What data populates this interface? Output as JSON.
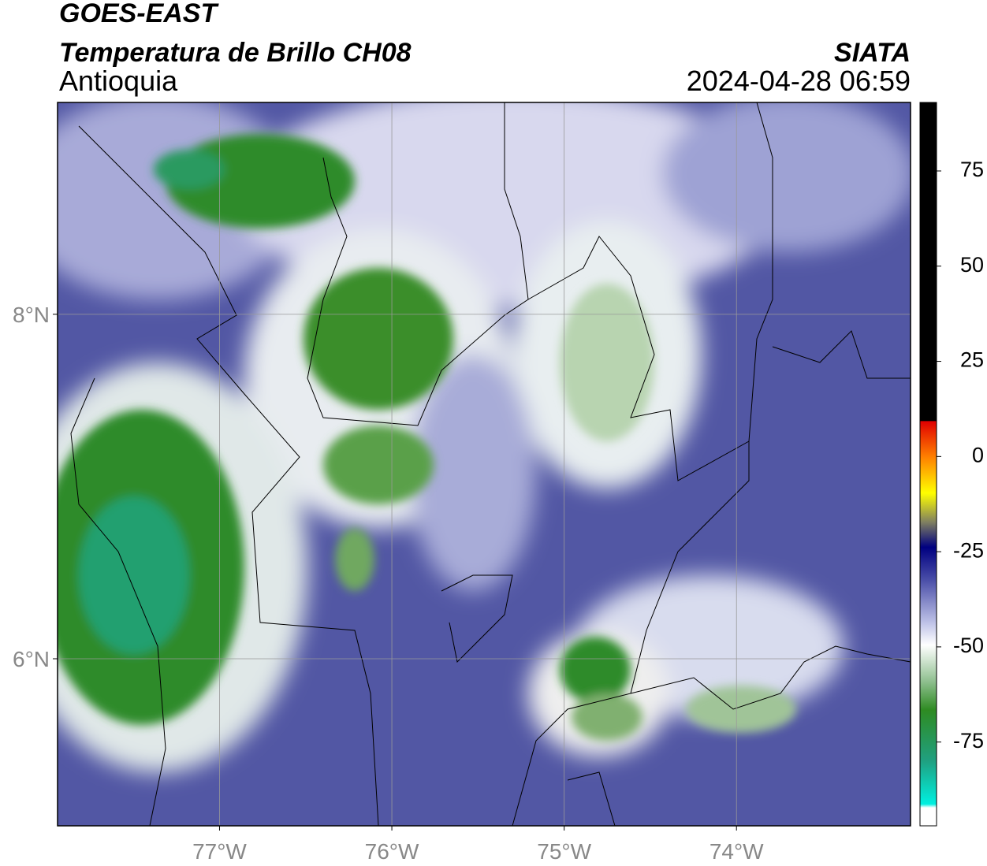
{
  "header": {
    "satellite": "GOES-EAST",
    "product": "Temperatura de Brillo CH08",
    "region": "Antioquia",
    "source": "SIATA",
    "datetime": "2024-04-28 06:59"
  },
  "map": {
    "xlim": [
      -77.94,
      -72.99
    ],
    "ylim": [
      5.03,
      9.23
    ],
    "xticks": [
      {
        "value": -77,
        "label": "77°W"
      },
      {
        "value": -76,
        "label": "76°W"
      },
      {
        "value": -75,
        "label": "75°W"
      },
      {
        "value": -74,
        "label": "74°W"
      }
    ],
    "yticks": [
      {
        "value": 6,
        "label": "6°N"
      },
      {
        "value": 8,
        "label": "8°N"
      }
    ],
    "grid": true
  },
  "colorbar": {
    "lim": [
      -97,
      93
    ],
    "ticks": [
      75,
      50,
      25,
      0,
      -25,
      -50,
      -75
    ]
  }
}
